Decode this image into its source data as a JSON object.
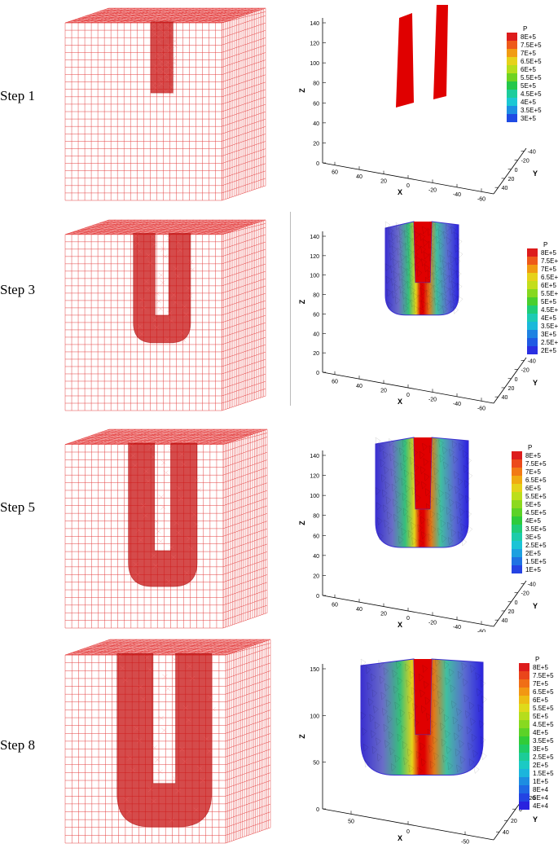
{
  "colors": {
    "mesh": "#e02020",
    "pressure_high": "#e00000",
    "pressure_low": "#2a3bd8"
  },
  "rows": [
    {
      "label": "Step 1",
      "legend": {
        "title": "P",
        "items": [
          {
            "v": "8E+5",
            "c": "#dd1c1c"
          },
          {
            "v": "7.5E+5",
            "c": "#ee5a1a"
          },
          {
            "v": "7E+5",
            "c": "#f19b12"
          },
          {
            "v": "6.5E+5",
            "c": "#e6d21a"
          },
          {
            "v": "6E+5",
            "c": "#b6de1c"
          },
          {
            "v": "5.5E+5",
            "c": "#6fd321"
          },
          {
            "v": "5E+5",
            "c": "#25c84b"
          },
          {
            "v": "4.5E+5",
            "c": "#1ccd9c"
          },
          {
            "v": "4E+5",
            "c": "#1bc8d4"
          },
          {
            "v": "3.5E+5",
            "c": "#1e8fe3"
          },
          {
            "v": "3E+5",
            "c": "#1f4be4"
          }
        ]
      },
      "axes": {
        "z_label": "Z",
        "x_label": "X",
        "y_label": "Y",
        "z_ticks": [
          "0",
          "20",
          "40",
          "60",
          "80",
          "100",
          "120",
          "140"
        ],
        "x_ticks": [
          "60",
          "40",
          "20",
          "0",
          "-20",
          "-40",
          "-60"
        ],
        "y_ticks": [
          "-40",
          "-20",
          "0",
          "20",
          "40"
        ]
      }
    },
    {
      "label": "Step 3",
      "legend": {
        "title": "P",
        "items": [
          {
            "v": "8E+5",
            "c": "#dd1c1c"
          },
          {
            "v": "7.5E+5",
            "c": "#ee5a1a"
          },
          {
            "v": "7E+5",
            "c": "#f19b12"
          },
          {
            "v": "6.5E+5",
            "c": "#e6d21a"
          },
          {
            "v": "6E+5",
            "c": "#c3de1c"
          },
          {
            "v": "5.5E+5",
            "c": "#86d81f"
          },
          {
            "v": "5E+5",
            "c": "#49cf2e"
          },
          {
            "v": "4.5E+5",
            "c": "#1fcd78"
          },
          {
            "v": "4E+5",
            "c": "#1ccbb4"
          },
          {
            "v": "3.5E+5",
            "c": "#1ab9da"
          },
          {
            "v": "3E+5",
            "c": "#1e82e2"
          },
          {
            "v": "2.5E+5",
            "c": "#1f5ae4"
          },
          {
            "v": "2E+5",
            "c": "#2a2fe2"
          }
        ]
      },
      "axes": {
        "z_label": "Z",
        "x_label": "X",
        "y_label": "Y",
        "z_ticks": [
          "0",
          "20",
          "40",
          "60",
          "80",
          "100",
          "120",
          "140"
        ],
        "x_ticks": [
          "60",
          "40",
          "20",
          "0",
          "-20",
          "-40",
          "-60"
        ],
        "y_ticks": [
          "-40",
          "-20",
          "0",
          "20",
          "40"
        ]
      }
    },
    {
      "label": "Step 5",
      "legend": {
        "title": "P",
        "items": [
          {
            "v": "8E+5",
            "c": "#dd1c1c"
          },
          {
            "v": "7.5E+5",
            "c": "#ec4a1b"
          },
          {
            "v": "7E+5",
            "c": "#f27a15"
          },
          {
            "v": "6.5E+5",
            "c": "#f0ab12"
          },
          {
            "v": "6E+5",
            "c": "#e5d21a"
          },
          {
            "v": "5.5E+5",
            "c": "#bcde1c"
          },
          {
            "v": "5E+5",
            "c": "#8cd91f"
          },
          {
            "v": "4.5E+5",
            "c": "#5cd227"
          },
          {
            "v": "4E+5",
            "c": "#2dcb3c"
          },
          {
            "v": "3.5E+5",
            "c": "#1fcc78"
          },
          {
            "v": "3E+5",
            "c": "#1cccaa"
          },
          {
            "v": "2.5E+5",
            "c": "#1bc4d6"
          },
          {
            "v": "2E+5",
            "c": "#1da0e0"
          },
          {
            "v": "1.5E+5",
            "c": "#1f72e3"
          },
          {
            "v": "1E+5",
            "c": "#2543e3"
          }
        ]
      },
      "axes": {
        "z_label": "Z",
        "x_label": "X",
        "y_label": "Y",
        "z_ticks": [
          "0",
          "20",
          "40",
          "60",
          "80",
          "100",
          "120",
          "140"
        ],
        "x_ticks": [
          "60",
          "40",
          "20",
          "0",
          "-20",
          "-40",
          "-60"
        ],
        "y_ticks": [
          "-40",
          "-20",
          "0",
          "20",
          "40"
        ]
      }
    },
    {
      "label": "Step 8",
      "legend": {
        "title": "P",
        "items": [
          {
            "v": "8E+5",
            "c": "#dd1c1c"
          },
          {
            "v": "7.5E+5",
            "c": "#ea451b"
          },
          {
            "v": "7E+5",
            "c": "#f06e16"
          },
          {
            "v": "6.5E+5",
            "c": "#f29713"
          },
          {
            "v": "6E+5",
            "c": "#edbd14"
          },
          {
            "v": "5.5E+5",
            "c": "#dfda1a"
          },
          {
            "v": "5E+5",
            "c": "#b5dd1c"
          },
          {
            "v": "4.5E+5",
            "c": "#88d91f"
          },
          {
            "v": "4E+5",
            "c": "#5cd227"
          },
          {
            "v": "3.5E+5",
            "c": "#31cc38"
          },
          {
            "v": "3E+5",
            "c": "#1fcc66"
          },
          {
            "v": "2.5E+5",
            "c": "#1ccc98"
          },
          {
            "v": "2E+5",
            "c": "#1bcac4"
          },
          {
            "v": "1.5E+5",
            "c": "#1bb5dc"
          },
          {
            "v": "1E+5",
            "c": "#1d8de1"
          },
          {
            "v": "8E+4",
            "c": "#1f68e4"
          },
          {
            "v": "6E+4",
            "c": "#2344e3"
          },
          {
            "v": "4E+4",
            "c": "#2a22df"
          }
        ]
      },
      "axes": {
        "z_label": "Z",
        "x_label": "X",
        "y_label": "Y",
        "z_ticks": [
          "0",
          "50",
          "100",
          "150"
        ],
        "x_ticks": [
          "50",
          "0",
          "-50"
        ],
        "y_ticks": [
          "-20",
          "0",
          "20",
          "40"
        ]
      }
    }
  ]
}
